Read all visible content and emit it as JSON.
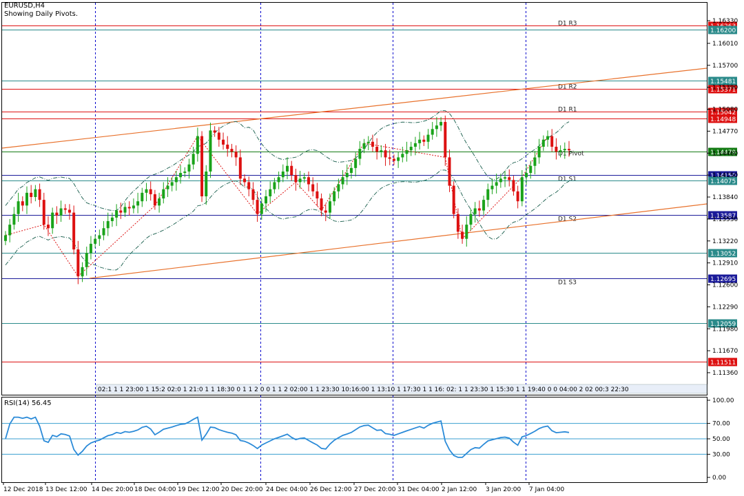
{
  "header": {
    "symbol": "EURUSD,H4",
    "subtitle": "Showing Daily Pivots."
  },
  "price_axis": {
    "ticks": [
      "1.16330",
      "1.16010",
      "1.15700",
      "1.15390",
      "1.15080",
      "1.14770",
      "1.14460",
      "1.14150",
      "1.13840",
      "1.13530",
      "1.13220",
      "1.12910",
      "1.12600",
      "1.12290",
      "1.11980",
      "1.11670",
      "1.11360"
    ]
  },
  "levels": [
    {
      "label": "D1 R3",
      "price": "1.16263",
      "color": "#dd1111"
    },
    {
      "label": "",
      "price": "1.16200",
      "color": "#2a8a8a"
    },
    {
      "label": "",
      "price": "1.15481",
      "color": "#2a8a8a"
    },
    {
      "label": "D1 R2",
      "price": "1.15371",
      "color": "#dd1111"
    },
    {
      "label": "D1 R1",
      "price": "1.15042",
      "color": "#dd1111"
    },
    {
      "label": "",
      "price": "1.14948",
      "color": "#dd1111"
    },
    {
      "label": "D1 Pivot",
      "price": "1.14479",
      "color": "#137a13"
    },
    {
      "label": "D1 S1",
      "price": "1.14150",
      "color": "#1a1a99"
    },
    {
      "label": "",
      "price": "1.14075",
      "color": "#2a8a8a"
    },
    {
      "label": "D1 S2",
      "price": "1.13587",
      "color": "#1a1a99"
    },
    {
      "label": "",
      "price": "1.13052",
      "color": "#2a8a8a"
    },
    {
      "label": "D1 S3",
      "price": "1.12695",
      "color": "#1a1a99"
    },
    {
      "label": "",
      "price": "1.12059",
      "color": "#2a8a8a"
    },
    {
      "label": "",
      "price": "1.11511",
      "color": "#dd1111"
    }
  ],
  "session_strip": "02:1 1 1 23:00 1 15:2 02:0 1 21:0 1 1 18:30 0 1 1 2 0 0 1 1 2 02:00 1 1 23:30 10:16:00 1 13:10 1 17:30 1 1 16: 02: 1 1 23:30 1 15:30 1 1 19:40 0 0 04:00 2 02 00:3 22:30",
  "rsi": {
    "label": "RSI(14) 56.45",
    "ticks": [
      "100.00",
      "70.00",
      "50.00",
      "30.00",
      "0.00"
    ]
  },
  "time_axis": [
    "12 Dec 2018",
    "13 Dec 12:00",
    "14 Dec 20:00",
    "18 Dec 04:00",
    "19 Dec 12:00",
    "20 Dec 20:00",
    "24 Dec 04:00",
    "26 Dec 12:00",
    "27 Dec 20:00",
    "31 Dec 04:00",
    "2 Jan 12:00",
    "3 Jan 20:00",
    "7 Jan 04:00"
  ],
  "chart_data": {
    "type": "candlestick",
    "symbol": "EURUSD",
    "timeframe": "H4",
    "ylim": [
      1.111,
      1.165
    ],
    "closes": [
      1.133,
      1.1345,
      1.136,
      1.1378,
      1.1372,
      1.139,
      1.1384,
      1.1395,
      1.138,
      1.1345,
      1.134,
      1.1362,
      1.1358,
      1.1368,
      1.1366,
      1.1362,
      1.131,
      1.1272,
      1.1285,
      1.1305,
      1.1318,
      1.1325,
      1.133,
      1.134,
      1.135,
      1.1355,
      1.1365,
      1.1362,
      1.137,
      1.1368,
      1.1372,
      1.1378,
      1.139,
      1.1395,
      1.1388,
      1.1372,
      1.1382,
      1.1395,
      1.14,
      1.1405,
      1.1412,
      1.1418,
      1.142,
      1.143,
      1.1445,
      1.147,
      1.1385,
      1.142,
      1.1478,
      1.1475,
      1.1465,
      1.1458,
      1.1452,
      1.1448,
      1.144,
      1.141,
      1.1405,
      1.1395,
      1.138,
      1.136,
      1.1375,
      1.1385,
      1.1395,
      1.1405,
      1.1412,
      1.142,
      1.1428,
      1.1415,
      1.1405,
      1.141,
      1.1412,
      1.1402,
      1.1392,
      1.1382,
      1.1365,
      1.1362,
      1.1378,
      1.1392,
      1.1402,
      1.1412,
      1.1418,
      1.1425,
      1.1438,
      1.1452,
      1.146,
      1.1462,
      1.1455,
      1.1448,
      1.145,
      1.144,
      1.1438,
      1.1435,
      1.144,
      1.1445,
      1.145,
      1.1455,
      1.146,
      1.1465,
      1.1462,
      1.1472,
      1.148,
      1.1485,
      1.149,
      1.144,
      1.14,
      1.136,
      1.1335,
      1.1325,
      1.1345,
      1.136,
      1.1368,
      1.1365,
      1.138,
      1.1395,
      1.14,
      1.1405,
      1.141,
      1.1412,
      1.1408,
      1.1392,
      1.1378,
      1.1412,
      1.1418,
      1.1428,
      1.144,
      1.1455,
      1.1465,
      1.147,
      1.1455,
      1.1448,
      1.145,
      1.1452,
      1.145
    ],
    "series": [
      {
        "name": "RSI(14)",
        "last": 56.45
      }
    ]
  }
}
